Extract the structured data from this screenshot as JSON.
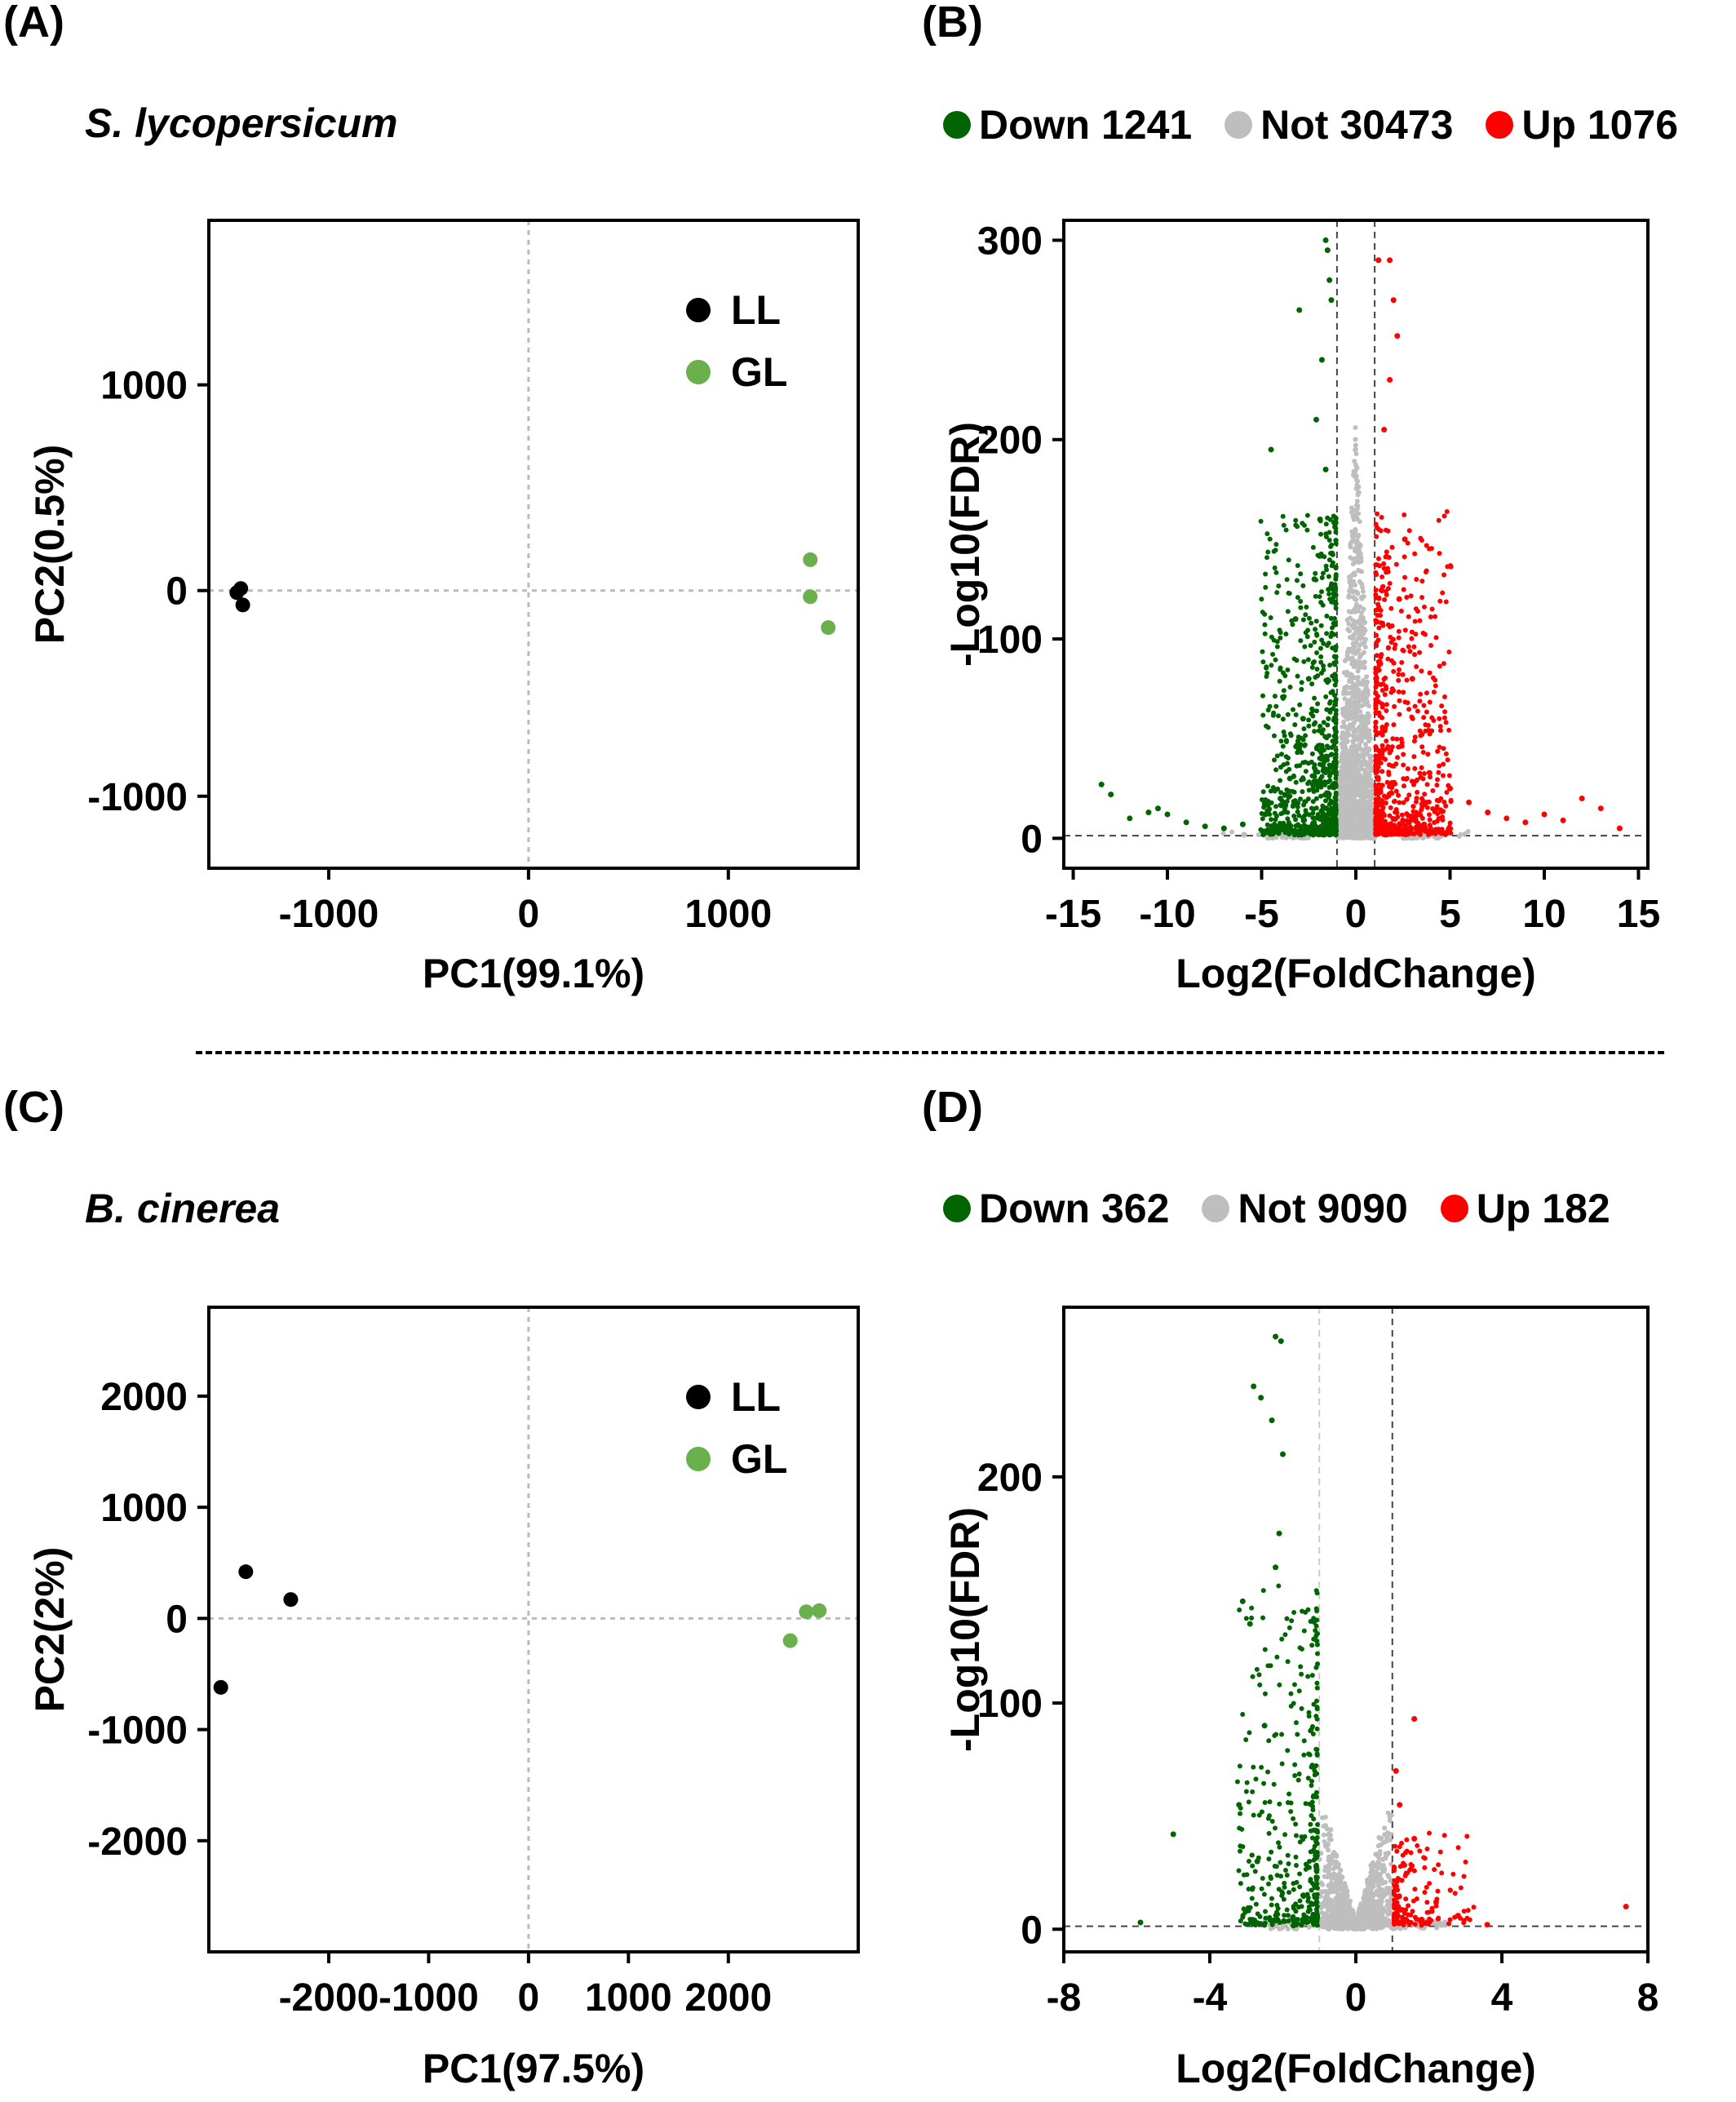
{
  "panels": {
    "A": {
      "label": "(A)",
      "species": "S. lycopersicum"
    },
    "B": {
      "label": "(B)",
      "legend": [
        {
          "name": "Down",
          "count": "1241",
          "color": "#006400"
        },
        {
          "name": "Not",
          "count": "30473",
          "color": "#bebebe"
        },
        {
          "name": "Up",
          "count": "1076",
          "color": "#ff0000"
        }
      ]
    },
    "C": {
      "label": "(C)",
      "species": "B. cinerea"
    },
    "D": {
      "label": "(D)",
      "legend": [
        {
          "name": "Down",
          "count": "362",
          "color": "#006400"
        },
        {
          "name": "Not",
          "count": "9090",
          "color": "#bebebe"
        },
        {
          "name": "Up",
          "count": "182",
          "color": "#ff0000"
        }
      ]
    }
  },
  "chart_data": [
    {
      "id": "A",
      "type": "scatter",
      "xlabel": "PC1(99.1%)",
      "ylabel": "PC2(0.5%)",
      "xlim": [
        -1600,
        1650
      ],
      "ylim": [
        -1350,
        1800
      ],
      "xticks": [
        -1000,
        0,
        1000
      ],
      "yticks": [
        -1000,
        0,
        1000
      ],
      "series": [
        {
          "name": "LL",
          "color": "#000000",
          "points": [
            [
              -1460,
              -10
            ],
            [
              -1440,
              10
            ],
            [
              -1430,
              -70
            ]
          ]
        },
        {
          "name": "GL",
          "color": "#6ab04c",
          "points": [
            [
              1410,
              150
            ],
            [
              1410,
              -30
            ],
            [
              1500,
              -180
            ]
          ]
        }
      ]
    },
    {
      "id": "B",
      "type": "scatter",
      "xlabel": "Log2(FoldChange)",
      "ylabel": "-Log10(FDR)",
      "xlim": [
        -15.5,
        15.5
      ],
      "ylim": [
        -15,
        310
      ],
      "xticks": [
        -15,
        -10,
        -5,
        0,
        5,
        10,
        15
      ],
      "yticks": [
        0,
        100,
        200,
        300
      ],
      "thresholds": {
        "x": [
          -1,
          1
        ],
        "y": 1.3
      },
      "counts": {
        "down": 1241,
        "not": 30473,
        "up": 1076
      },
      "colors": {
        "down": "#006400",
        "not": "#bebebe",
        "up": "#ff0000"
      },
      "highlight_points": {
        "down": [
          [
            -13.5,
            27
          ],
          [
            -13,
            22
          ],
          [
            -12,
            10
          ],
          [
            -11,
            13
          ],
          [
            -10.5,
            15
          ],
          [
            -10,
            12
          ],
          [
            -9,
            8
          ],
          [
            -8,
            6
          ],
          [
            -7,
            5
          ],
          [
            -6,
            7
          ],
          [
            -4.8,
            12
          ],
          [
            -4,
            20
          ],
          [
            -3.5,
            30
          ],
          [
            -3,
            45
          ],
          [
            -2.8,
            60
          ],
          [
            -2.5,
            80
          ],
          [
            -3.2,
            110
          ],
          [
            -2.2,
            130
          ],
          [
            -1.9,
            160
          ],
          [
            -1.6,
            185
          ],
          [
            -2.1,
            210
          ],
          [
            -4.5,
            195
          ],
          [
            -1.8,
            240
          ],
          [
            -3,
            265
          ],
          [
            -1.5,
            295
          ],
          [
            -1.6,
            300
          ],
          [
            -1.3,
            270
          ],
          [
            -1.4,
            280
          ]
        ],
        "up": [
          [
            1.2,
            290
          ],
          [
            1.8,
            290
          ],
          [
            2.0,
            270
          ],
          [
            2.2,
            252
          ],
          [
            1.8,
            230
          ],
          [
            1.5,
            205
          ],
          [
            2.6,
            150
          ],
          [
            2.3,
            120
          ],
          [
            3,
            80
          ],
          [
            5,
            25
          ],
          [
            6,
            18
          ],
          [
            7,
            13
          ],
          [
            8,
            10
          ],
          [
            9,
            8
          ],
          [
            10,
            12
          ],
          [
            11,
            9
          ],
          [
            12,
            20
          ],
          [
            13,
            15
          ],
          [
            14,
            5
          ]
        ]
      }
    },
    {
      "id": "C",
      "type": "scatter",
      "xlabel": "PC1(97.5%)",
      "ylabel": "PC2(2%)",
      "xlim": [
        -3200,
        3300
      ],
      "ylim": [
        -3000,
        2800
      ],
      "xticks": [
        -2000,
        -1000,
        0,
        1000,
        2000
      ],
      "yticks": [
        -2000,
        -1000,
        0,
        1000,
        2000
      ],
      "series": [
        {
          "name": "LL",
          "color": "#000000",
          "points": [
            [
              -2830,
              420
            ],
            [
              -2380,
              170
            ],
            [
              -3080,
              -620
            ]
          ]
        },
        {
          "name": "GL",
          "color": "#6ab04c",
          "points": [
            [
              2780,
              60
            ],
            [
              2910,
              70
            ],
            [
              2620,
              -200
            ]
          ]
        }
      ]
    },
    {
      "id": "D",
      "type": "scatter",
      "xlabel": "Log2(FoldChange)",
      "ylabel": "-Log10(FDR)",
      "xlim": [
        -8,
        8
      ],
      "ylim": [
        -10,
        275
      ],
      "xticks": [
        -8,
        -4,
        0,
        4,
        8
      ],
      "yticks": [
        0,
        100,
        200
      ],
      "thresholds": {
        "x": [
          -1,
          1
        ],
        "y": 1.3
      },
      "counts": {
        "down": 362,
        "not": 9090,
        "up": 182
      },
      "colors": {
        "down": "#006400",
        "not": "#bebebe",
        "up": "#ff0000"
      },
      "highlight_points": {
        "down": [
          [
            -5.9,
            3
          ],
          [
            -5,
            42
          ],
          [
            -3.1,
            145
          ],
          [
            -2.9,
            135
          ],
          [
            -2.8,
            240
          ],
          [
            -2.6,
            235
          ],
          [
            -2.2,
            262
          ],
          [
            -2.05,
            260
          ],
          [
            -2.3,
            225
          ],
          [
            -2.0,
            210
          ],
          [
            -2.1,
            175
          ],
          [
            -2.2,
            160
          ],
          [
            -2.5,
            90
          ],
          [
            -3.2,
            55
          ],
          [
            -2.7,
            30
          ]
        ],
        "up": [
          [
            1.6,
            93
          ],
          [
            1.1,
            70
          ],
          [
            1.2,
            55
          ],
          [
            1.6,
            40
          ],
          [
            2.2,
            12
          ],
          [
            2.8,
            6
          ],
          [
            3.6,
            2
          ],
          [
            7.4,
            10
          ]
        ]
      }
    }
  ]
}
